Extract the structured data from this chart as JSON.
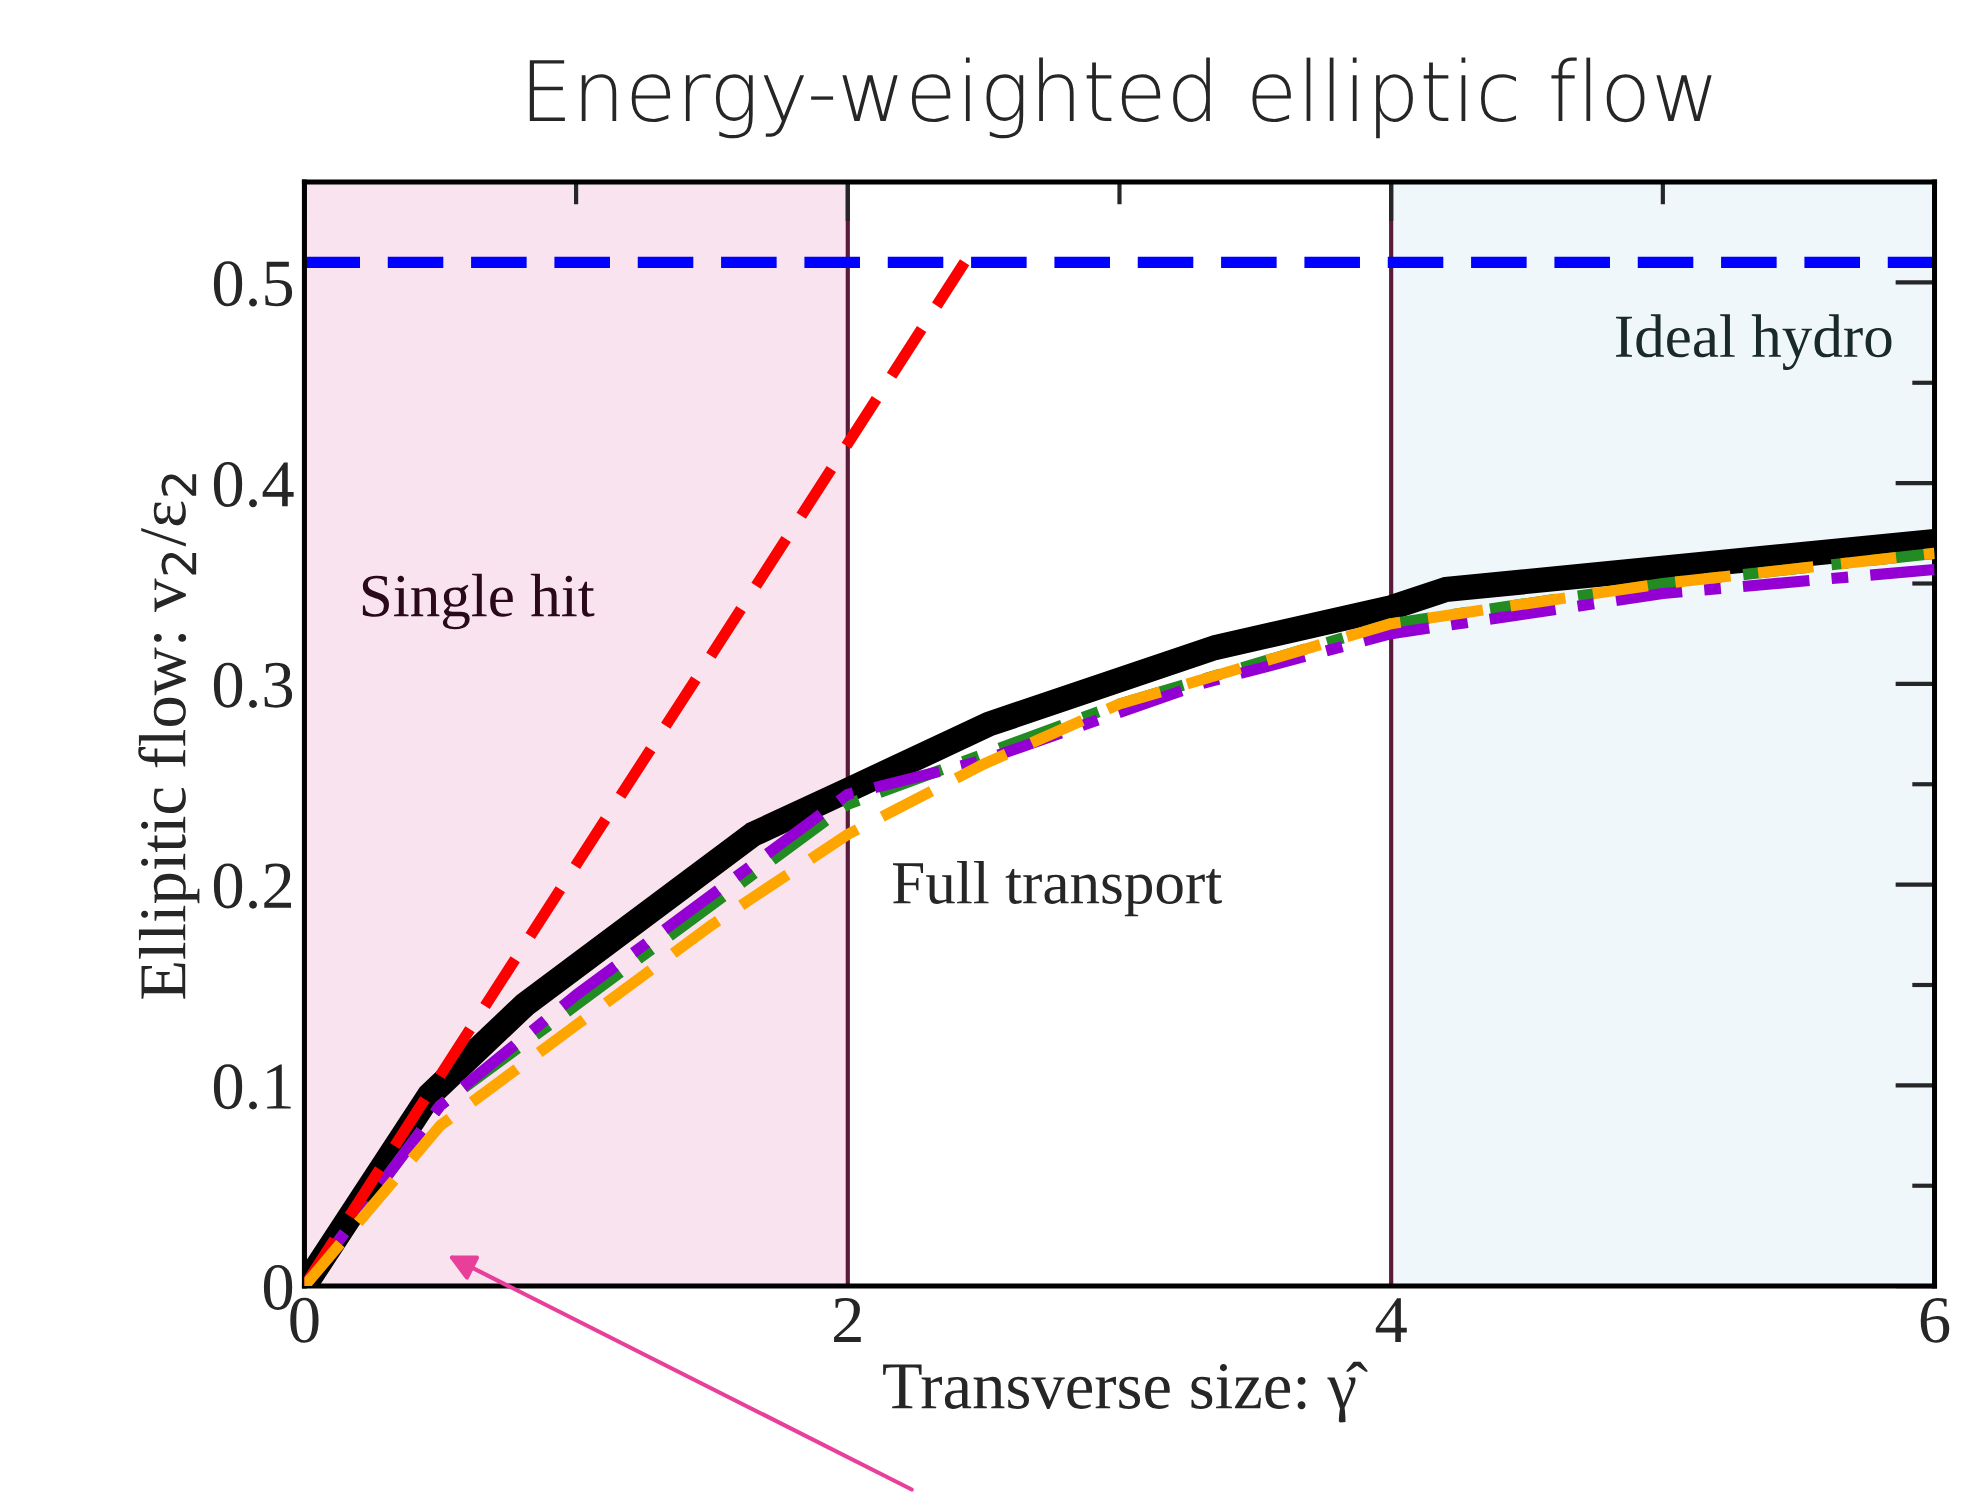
{
  "chart_data": {
    "type": "line",
    "title": "Energy-weighted elliptic flow",
    "xlabel": "Transverse size: γ̂",
    "ylabel": "Ellipitic flow: v$_{2}$/ε$_{2}$",
    "xlim": [
      0,
      6
    ],
    "ylim": [
      0,
      0.55
    ],
    "xticks": [
      0,
      2,
      4,
      6
    ],
    "yticks": [
      0,
      0.1,
      0.2,
      0.3,
      0.4,
      0.5
    ],
    "grid": false,
    "legend": false,
    "marker": "none",
    "series": [
      {
        "color": "#000000",
        "line_style": "solid",
        "x": [
          0,
          0.46,
          0.81,
          1.65,
          2.0,
          2.52,
          3.35,
          4.0,
          4.2,
          6.0
        ],
        "values": [
          0,
          0.095,
          0.14,
          0.225,
          0.247,
          0.28,
          0.318,
          0.338,
          0.347,
          0.371
        ]
      },
      {
        "color": "#ff0000",
        "line_style": "dashed",
        "x": [
          0,
          2.43
        ],
        "values": [
          0,
          0.51
        ]
      },
      {
        "color": "#ffa500",
        "line_style": "dashed",
        "x": [
          0,
          0.5,
          1,
          1.5,
          2,
          2.5,
          3,
          4,
          5,
          6
        ],
        "values": [
          0,
          0.08,
          0.13,
          0.18,
          0.225,
          0.26,
          0.29,
          0.33,
          0.35,
          0.365
        ]
      },
      {
        "color": "#228b22",
        "line_style": "dashdot",
        "x": [
          0,
          0.5,
          1,
          2,
          3,
          4,
          5,
          6
        ],
        "values": [
          0,
          0.09,
          0.14,
          0.24,
          0.29,
          0.33,
          0.35,
          0.365
        ]
      },
      {
        "color": "#9400d3",
        "line_style": "dashdot",
        "x": [
          0,
          0.5,
          1,
          2,
          2.5,
          3.3,
          4,
          5,
          6
        ],
        "values": [
          0,
          0.09,
          0.145,
          0.245,
          0.262,
          0.3,
          0.325,
          0.345,
          0.357
        ]
      }
    ],
    "ref_lines": [
      {
        "axis": "y",
        "value": 0.51,
        "color": "#0000ff",
        "line_style": "dashed"
      }
    ],
    "bands": [
      {
        "axis": "x",
        "from": 0,
        "to": 2,
        "label": "Single hit",
        "color": "#f9e3ef"
      },
      {
        "axis": "x",
        "from": 4,
        "to": 6,
        "label": "Ideal hydro",
        "color": "#f0f7fb"
      }
    ],
    "annotations": [
      "Full transport"
    ]
  }
}
